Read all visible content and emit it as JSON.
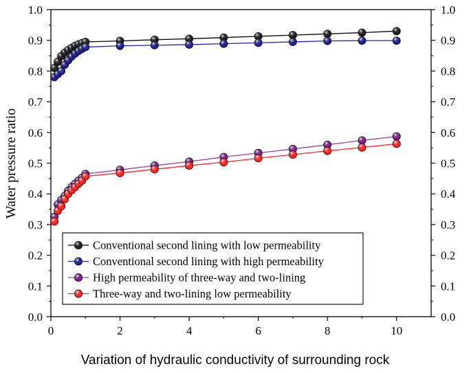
{
  "chart_data": {
    "type": "line",
    "xlabel": "Variation of hydraulic conductivity of surrounding rock",
    "ylabel": "Water pressure ratio",
    "xlim": [
      0,
      11
    ],
    "ylim": [
      0,
      1.0
    ],
    "x_ticks": [
      0,
      2,
      4,
      6,
      8,
      10
    ],
    "y_ticks": [
      0.0,
      0.1,
      0.2,
      0.3,
      0.4,
      0.5,
      0.6,
      0.7,
      0.8,
      0.9,
      1.0
    ],
    "x_tick_labels": [
      "0",
      "2",
      "4",
      "6",
      "8",
      "10"
    ],
    "y_tick_labels": [
      "0.0",
      "0.1",
      "0.2",
      "0.3",
      "0.4",
      "0.5",
      "0.6",
      "0.7",
      "0.8",
      "0.9",
      "1.0"
    ],
    "grid": false,
    "mirror_y_axis_right": true,
    "legend_position": "bottom-left",
    "series": [
      {
        "name": "Conventional second lining with low permeability",
        "color": "#000000",
        "marker_fill": "#1a1a1a",
        "x": [
          0.1,
          0.2,
          0.3,
          0.4,
          0.5,
          0.6,
          0.7,
          0.8,
          0.9,
          1,
          2,
          3,
          4,
          5,
          6,
          7,
          8,
          9,
          10
        ],
        "y": [
          0.81,
          0.83,
          0.848,
          0.86,
          0.868,
          0.875,
          0.882,
          0.887,
          0.891,
          0.895,
          0.898,
          0.902,
          0.905,
          0.909,
          0.913,
          0.917,
          0.921,
          0.925,
          0.93
        ]
      },
      {
        "name": "Conventional second lining with high permeability",
        "color": "#2020c0",
        "marker_fill": "#1c1c8c",
        "x": [
          0.1,
          0.2,
          0.3,
          0.4,
          0.5,
          0.6,
          0.7,
          0.8,
          0.9,
          1,
          2,
          3,
          4,
          5,
          6,
          7,
          8,
          9,
          10
        ],
        "y": [
          0.78,
          0.79,
          0.8,
          0.82,
          0.835,
          0.847,
          0.857,
          0.865,
          0.872,
          0.878,
          0.882,
          0.884,
          0.886,
          0.889,
          0.892,
          0.895,
          0.898,
          0.899,
          0.899
        ]
      },
      {
        "name": "High permeability of three-way and two-lining",
        "color": "#a040a0",
        "marker_fill": "#7a1a8a",
        "x": [
          0.1,
          0.2,
          0.3,
          0.4,
          0.5,
          0.6,
          0.7,
          0.8,
          0.9,
          1,
          2,
          3,
          4,
          5,
          6,
          7,
          8,
          9,
          10
        ],
        "y": [
          0.325,
          0.365,
          0.38,
          0.393,
          0.41,
          0.422,
          0.433,
          0.443,
          0.452,
          0.465,
          0.478,
          0.492,
          0.505,
          0.52,
          0.533,
          0.546,
          0.56,
          0.574,
          0.587
        ]
      },
      {
        "name": "Three-way and two-lining low permeability",
        "color": "#ff2020",
        "marker_fill": "#ff2020",
        "x": [
          0.1,
          0.2,
          0.3,
          0.4,
          0.5,
          0.6,
          0.7,
          0.8,
          0.9,
          1,
          2,
          3,
          4,
          5,
          6,
          7,
          8,
          9,
          10
        ],
        "y": [
          0.31,
          0.345,
          0.36,
          0.383,
          0.4,
          0.412,
          0.422,
          0.433,
          0.443,
          0.457,
          0.468,
          0.48,
          0.492,
          0.503,
          0.516,
          0.528,
          0.54,
          0.551,
          0.563
        ]
      }
    ]
  }
}
